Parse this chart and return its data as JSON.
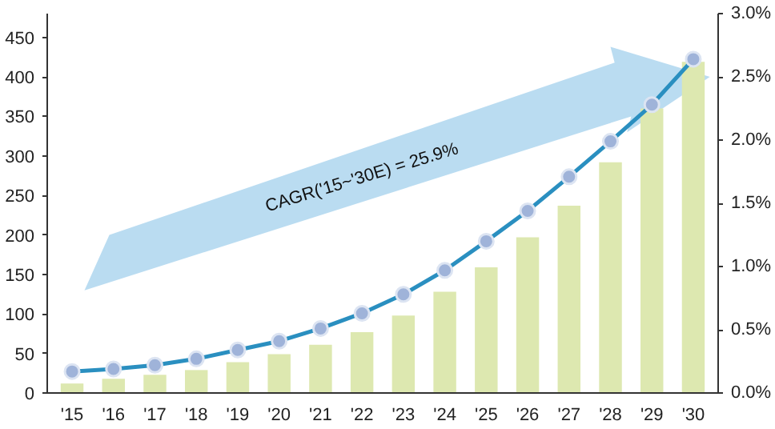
{
  "chart_data": {
    "type": "bar",
    "categories": [
      "'15",
      "'16",
      "'17",
      "'18",
      "'19",
      "'20",
      "'21",
      "'22",
      "'23",
      "'24",
      "'25",
      "'26",
      "'27",
      "'28",
      "'29",
      "'30"
    ],
    "series": [
      {
        "color": "#dde8b0",
        "values": [
          12,
          18,
          23,
          29,
          39,
          49,
          61,
          77,
          98,
          128,
          159,
          197,
          237,
          292,
          360,
          419
        ]
      },
      {
        "type": "line",
        "axis": "y2",
        "color": "#2a8fc0",
        "marker": "circle",
        "values": [
          0.17,
          0.19,
          0.22,
          0.27,
          0.34,
          0.41,
          0.51,
          0.63,
          0.78,
          0.97,
          1.2,
          1.44,
          1.71,
          1.99,
          2.28,
          2.64
        ]
      }
    ],
    "ylim": [
      0,
      480
    ],
    "yticks": [
      0,
      50,
      100,
      150,
      200,
      250,
      300,
      350,
      400,
      450
    ],
    "y2lim": [
      0,
      3.0
    ],
    "y2ticks": [
      {
        "value": 0,
        "label": "0.0%"
      },
      {
        "value": 0.5,
        "label": "0.5%"
      },
      {
        "value": 1.0,
        "label": "1.0%"
      },
      {
        "value": 1.5,
        "label": "1.5%"
      },
      {
        "value": 2.0,
        "label": "2.0%"
      },
      {
        "value": 2.5,
        "label": "2.5%"
      },
      {
        "value": 3.0,
        "label": "3.0%"
      }
    ],
    "annotations": [
      "CAGR('15~'30E) = 25.9%"
    ],
    "grid": false
  }
}
